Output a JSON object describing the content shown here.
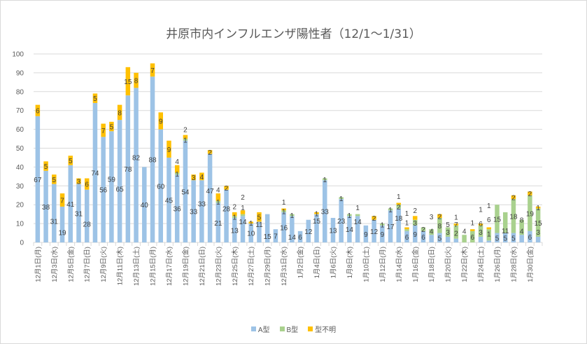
{
  "chart_data": {
    "type": "bar",
    "stacked": true,
    "title": "井原市内インフルエンザ陽性者（12/1～1/31）",
    "ylim": [
      0,
      100
    ],
    "yticks": [
      0,
      10,
      20,
      30,
      40,
      50,
      60,
      70,
      80,
      90,
      100
    ],
    "grid": true,
    "legend_position": "bottom",
    "tick_labels": [
      "12月1日(月)",
      "12月3日(水)",
      "12月5日(金)",
      "12月7日(日)",
      "12月9日(火)",
      "12月11日(木)",
      "12月13日(土)",
      "12月15日(月)",
      "12月17日(水)",
      "12月19日(金)",
      "12月21日(日)",
      "12月23日(火)",
      "12月25日(木)",
      "12月27日(土)",
      "12月29日(月)",
      "12月31日(水)",
      "1月2日(金)",
      "1月4日(日)",
      "1月6日(火)",
      "1月8日(木)",
      "1月10日(土)",
      "1月12日(月)",
      "1月14日(水)",
      "1月16日(金)",
      "1月18日(日)",
      "1月20日(火)",
      "1月22日(木)",
      "1月24日(土)",
      "1月26日(月)",
      "1月28日(水)",
      "1月30日(金)"
    ],
    "series": [
      {
        "name": "A型",
        "color": "#9dc3e6",
        "values": [
          67,
          38,
          31,
          19,
          41,
          31,
          28,
          74,
          56,
          59,
          65,
          78,
          82,
          40,
          88,
          60,
          45,
          36,
          54,
          33,
          33,
          47,
          21,
          28,
          13,
          14,
          10,
          11,
          15,
          7,
          16,
          14,
          6,
          12,
          15,
          33,
          13,
          23,
          14,
          14,
          9,
          12,
          9,
          17,
          18,
          6,
          9,
          6,
          4,
          5,
          3,
          2,
          0,
          0,
          3,
          1,
          5,
          5,
          5,
          4,
          6,
          3
        ]
      },
      {
        "name": "B型",
        "color": "#a9d18e",
        "values": [
          0,
          0,
          0,
          0,
          0,
          0,
          0,
          0,
          0,
          0,
          0,
          0,
          0,
          0,
          0,
          0,
          0,
          1,
          1,
          0,
          0,
          0,
          1,
          0,
          1,
          1,
          0,
          0,
          0,
          0,
          1,
          1,
          0,
          0,
          0,
          1,
          0,
          1,
          1,
          1,
          0,
          0,
          1,
          1,
          2,
          1,
          3,
          2,
          3,
          8,
          5,
          7,
          4,
          6,
          6,
          6,
          15,
          11,
          18,
          8,
          19,
          15
        ]
      },
      {
        "name": "型不明",
        "color": "#ffc000",
        "values": [
          6,
          5,
          5,
          7,
          5,
          3,
          6,
          5,
          7,
          5,
          8,
          15,
          8,
          0,
          7,
          9,
          9,
          4,
          2,
          3,
          4,
          2,
          4,
          2,
          2,
          2,
          1,
          5,
          0,
          0,
          1,
          0,
          0,
          0,
          1,
          0,
          0,
          0,
          0,
          0,
          0,
          2,
          0,
          0,
          1,
          1,
          2,
          0,
          0,
          2,
          0,
          1,
          0,
          1,
          1,
          1,
          0,
          0,
          2,
          0,
          2,
          1
        ]
      }
    ]
  }
}
